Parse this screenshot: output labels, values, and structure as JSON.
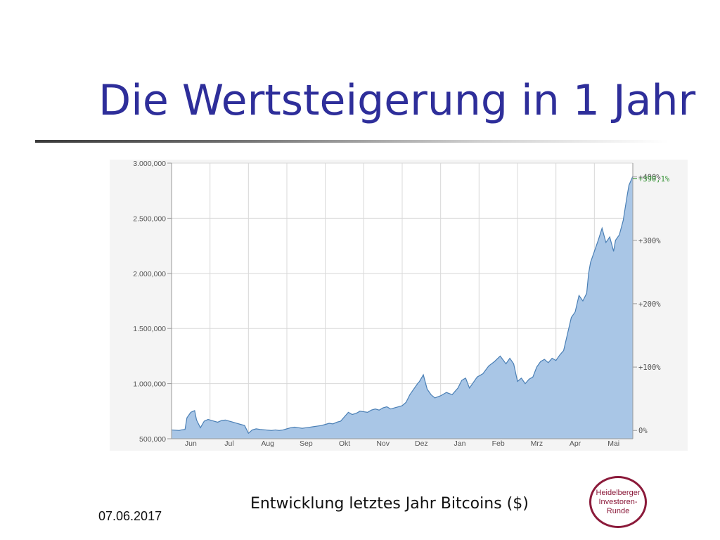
{
  "slide": {
    "title": "Die Wertsteigerung in 1 Jahr",
    "caption": "Entwicklung letztes Jahr Bitcoins ($)",
    "date": "07.06.2017"
  },
  "logo": {
    "lines": [
      "Heidelberger",
      "Investoren-",
      "Runde"
    ],
    "color": "#8b1a3a"
  },
  "chart_data": {
    "type": "area",
    "x_categories": [
      "Jun",
      "Jul",
      "Aug",
      "Sep",
      "Okt",
      "Nov",
      "Dez",
      "Jan",
      "Feb",
      "Mrz",
      "Apr",
      "Mai"
    ],
    "y_left_ticks": [
      {
        "value": 500000,
        "label": "500,000"
      },
      {
        "value": 1000000,
        "label": "1.000,000"
      },
      {
        "value": 1500000,
        "label": "1.500,000"
      },
      {
        "value": 2000000,
        "label": "2.000,000"
      },
      {
        "value": 2500000,
        "label": "2.500,000"
      },
      {
        "value": 3000000,
        "label": "3.000,000"
      }
    ],
    "y_right_ticks": [
      {
        "value": 575000,
        "label": "0%"
      },
      {
        "value": 1150000,
        "label": "+100%"
      },
      {
        "value": 1725000,
        "label": "+200%"
      },
      {
        "value": 2300000,
        "label": "+300%"
      },
      {
        "value": 2875000,
        "label": "+400%"
      }
    ],
    "last_value_label": "+390,1%",
    "ylim": [
      500000,
      3000000
    ],
    "xlim": [
      0,
      12
    ],
    "grid": true,
    "fill_color": "#a9c6e6",
    "line_color": "#4a7fb5",
    "series": [
      {
        "x": [
          0,
          0.2,
          0.25,
          0.35,
          0.4,
          0.5,
          0.6,
          0.65,
          0.75,
          0.85,
          0.95,
          1.0,
          1.1,
          1.2,
          1.3,
          1.4,
          1.5,
          1.6,
          1.7,
          1.8,
          1.9,
          2.0,
          2.1,
          2.2,
          2.3,
          2.45,
          2.6,
          2.7,
          2.8,
          2.9,
          3.0,
          3.1,
          3.2,
          3.3,
          3.4,
          3.5,
          3.6,
          3.7,
          3.8,
          3.9,
          4.0,
          4.1,
          4.2,
          4.3,
          4.4,
          4.5,
          4.6,
          4.7,
          4.8,
          4.9,
          5.0,
          5.1,
          5.2,
          5.3,
          5.4,
          5.5,
          5.6,
          5.7,
          5.8,
          5.9,
          6.0,
          6.1,
          6.2,
          6.3,
          6.4,
          6.45,
          6.55,
          6.65,
          6.75,
          6.85,
          7.0,
          7.15,
          7.3,
          7.45,
          7.55,
          7.65,
          7.75,
          7.85,
          7.95,
          8.1,
          8.25,
          8.4,
          8.55,
          8.7,
          8.8,
          8.9,
          9.0,
          9.1,
          9.2,
          9.3,
          9.4,
          9.5,
          9.6,
          9.7,
          9.8,
          9.9,
          10.0,
          10.1,
          10.2,
          10.3,
          10.4,
          10.5,
          10.6,
          10.7,
          10.8,
          10.85,
          10.9,
          11.0,
          11.1,
          11.2,
          11.3,
          11.4,
          11.5,
          11.55,
          11.65,
          11.75,
          11.85,
          11.9,
          12.0
        ],
        "values": [
          580000,
          575000,
          580000,
          585000,
          690000,
          740000,
          755000,
          670000,
          600000,
          660000,
          675000,
          670000,
          660000,
          650000,
          665000,
          670000,
          660000,
          650000,
          640000,
          630000,
          620000,
          550000,
          580000,
          590000,
          585000,
          580000,
          575000,
          580000,
          575000,
          580000,
          590000,
          600000,
          605000,
          600000,
          595000,
          600000,
          605000,
          610000,
          615000,
          620000,
          630000,
          640000,
          635000,
          650000,
          660000,
          700000,
          740000,
          720000,
          730000,
          750000,
          745000,
          740000,
          760000,
          770000,
          760000,
          780000,
          790000,
          770000,
          780000,
          790000,
          800000,
          830000,
          900000,
          950000,
          1000000,
          1020000,
          1080000,
          950000,
          900000,
          870000,
          890000,
          920000,
          900000,
          960000,
          1030000,
          1050000,
          960000,
          1010000,
          1060000,
          1090000,
          1160000,
          1200000,
          1250000,
          1180000,
          1230000,
          1180000,
          1020000,
          1050000,
          1000000,
          1040000,
          1060000,
          1150000,
          1200000,
          1220000,
          1190000,
          1230000,
          1210000,
          1260000,
          1300000,
          1450000,
          1600000,
          1650000,
          1800000,
          1750000,
          1820000,
          2000000,
          2100000,
          2200000,
          2300000,
          2410000,
          2280000,
          2330000,
          2200000,
          2300000,
          2350000,
          2480000,
          2700000,
          2800000,
          2880000
        ]
      }
    ]
  }
}
